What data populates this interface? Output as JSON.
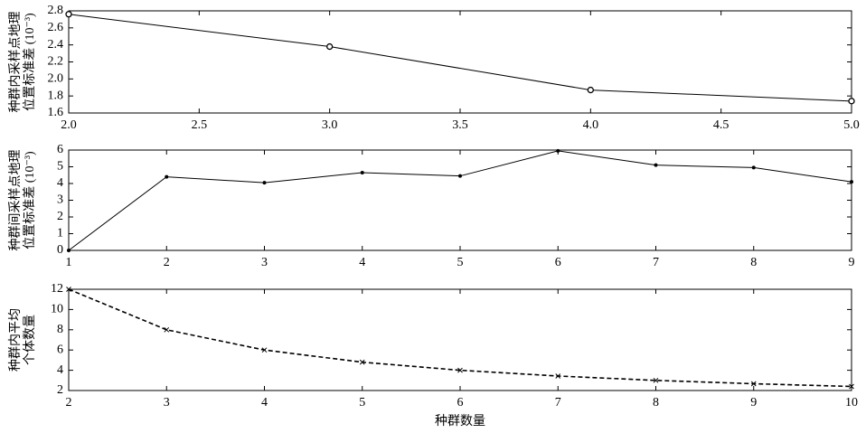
{
  "chart_data": [
    {
      "type": "line",
      "ylabel": [
        "种群内采样点地理",
        "位置标准差 (10⁻³)"
      ],
      "x": [
        2,
        3,
        4,
        5
      ],
      "series": [
        {
          "color": "#000000",
          "values": [
            2.76,
            2.38,
            1.87,
            1.74
          ]
        }
      ],
      "linestyle": "solid",
      "marker": "circle",
      "xlim": [
        2,
        5
      ],
      "xticks": [
        {
          "value": 2,
          "label": "2.0"
        },
        {
          "value": 2.5,
          "label": "2.5"
        },
        {
          "value": 3,
          "label": "3.0"
        },
        {
          "value": 3.5,
          "label": "3.5"
        },
        {
          "value": 4,
          "label": "4.0"
        },
        {
          "value": 4.5,
          "label": "4.5"
        },
        {
          "value": 5,
          "label": "5.0"
        }
      ],
      "ylim": [
        1.6,
        2.8
      ],
      "yticks": [
        {
          "value": 1.6,
          "label": "1.6"
        },
        {
          "value": 1.8,
          "label": "1.8"
        },
        {
          "value": 2,
          "label": "2.0"
        },
        {
          "value": 2.2,
          "label": "2.2"
        },
        {
          "value": 2.4,
          "label": "2.4"
        },
        {
          "value": 2.6,
          "label": "2.6"
        },
        {
          "value": 2.8,
          "label": "2.8"
        }
      ]
    },
    {
      "type": "line",
      "ylabel": [
        "种群间采样点地理",
        "位置标准差 (10⁻³)"
      ],
      "x": [
        1,
        2,
        3,
        4,
        5,
        6,
        7,
        8,
        9
      ],
      "series": [
        {
          "color": "#000000",
          "values": [
            0,
            4.4,
            4.05,
            4.65,
            4.45,
            5.95,
            5.1,
            4.95,
            4.1
          ]
        }
      ],
      "linestyle": "solid",
      "marker": "dot",
      "xlim": [
        1,
        9
      ],
      "xticks": [
        1,
        2,
        3,
        4,
        5,
        6,
        7,
        8,
        9
      ],
      "ylim": [
        0,
        6
      ],
      "yticks": [
        0,
        1,
        2,
        3,
        4,
        5,
        6
      ]
    },
    {
      "type": "line",
      "ylabel": [
        "种群内平均",
        "个体数量"
      ],
      "xlabel": "种群数量",
      "x": [
        2,
        3,
        4,
        5,
        6,
        7,
        8,
        9,
        10
      ],
      "series": [
        {
          "color": "#000000",
          "values": [
            12,
            8,
            6,
            4.8,
            4,
            3.43,
            3,
            2.67,
            2.4
          ]
        }
      ],
      "linestyle": "dashed",
      "marker": "x",
      "xlim": [
        2,
        10
      ],
      "xticks": [
        2,
        3,
        4,
        5,
        6,
        7,
        8,
        9,
        10
      ],
      "ylim": [
        2,
        12
      ],
      "yticks": [
        2,
        4,
        6,
        8,
        10,
        12
      ]
    }
  ]
}
